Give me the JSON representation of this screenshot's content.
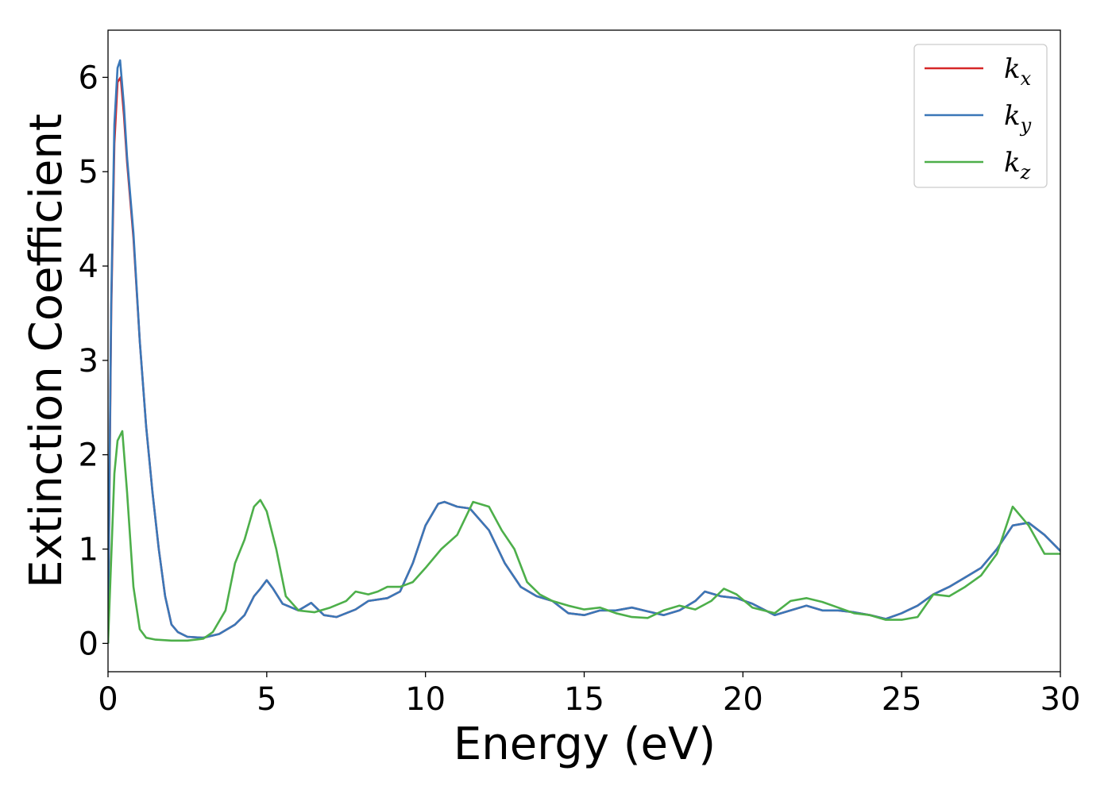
{
  "chart_data": {
    "type": "line",
    "xlabel": "Energy (eV)",
    "ylabel": "Extinction Coefficient",
    "xlim": [
      0,
      30
    ],
    "ylim": [
      -0.3,
      6.5
    ],
    "xticks": [
      "0",
      "5",
      "10",
      "15",
      "20",
      "25",
      "30"
    ],
    "yticks": [
      "0",
      "1",
      "2",
      "3",
      "4",
      "5",
      "6"
    ],
    "grid": false,
    "legend_position": "top-right",
    "series": [
      {
        "name": "k_x",
        "base": "k",
        "sub": "x",
        "color": "#d62728",
        "x": [
          0,
          0.05,
          0.1,
          0.2,
          0.3,
          0.4,
          0.5,
          0.6,
          0.8,
          1.0,
          1.2,
          1.4,
          1.6,
          1.8,
          2.0,
          2.2,
          2.5,
          3.0,
          3.5,
          4.0,
          4.3,
          4.6,
          4.8,
          5.0,
          5.2,
          5.5,
          6.0,
          6.4,
          6.8,
          7.2,
          7.8,
          8.2,
          8.8,
          9.2,
          9.6,
          10.0,
          10.4,
          10.6,
          11.0,
          11.4,
          12.0,
          12.5,
          13.0,
          13.5,
          14.0,
          14.5,
          15.0,
          15.5,
          16.0,
          16.5,
          17.0,
          17.5,
          18.0,
          18.5,
          18.8,
          19.3,
          19.8,
          20.3,
          21.0,
          21.5,
          22.0,
          22.5,
          23.0,
          23.5,
          24.0,
          24.5,
          25.0,
          25.5,
          26.0,
          26.5,
          27.0,
          27.5,
          28.0,
          28.5,
          29.0,
          29.5,
          30.0
        ],
        "y": [
          0.0,
          1.8,
          3.5,
          5.3,
          5.95,
          6.0,
          5.6,
          5.1,
          4.3,
          3.2,
          2.3,
          1.6,
          1.0,
          0.5,
          0.2,
          0.12,
          0.07,
          0.06,
          0.1,
          0.2,
          0.3,
          0.5,
          0.58,
          0.67,
          0.58,
          0.42,
          0.35,
          0.43,
          0.3,
          0.28,
          0.36,
          0.45,
          0.48,
          0.55,
          0.85,
          1.25,
          1.48,
          1.5,
          1.45,
          1.43,
          1.2,
          0.85,
          0.6,
          0.5,
          0.45,
          0.32,
          0.3,
          0.35,
          0.35,
          0.38,
          0.34,
          0.3,
          0.35,
          0.45,
          0.55,
          0.5,
          0.48,
          0.42,
          0.3,
          0.35,
          0.4,
          0.35,
          0.35,
          0.33,
          0.3,
          0.26,
          0.32,
          0.4,
          0.52,
          0.6,
          0.7,
          0.8,
          1.0,
          1.25,
          1.28,
          1.15,
          0.98
        ]
      },
      {
        "name": "k_y",
        "base": "k",
        "sub": "y",
        "color": "#3a77b8",
        "x": [
          0,
          0.05,
          0.1,
          0.2,
          0.3,
          0.38,
          0.5,
          0.6,
          0.8,
          1.0,
          1.2,
          1.4,
          1.6,
          1.8,
          2.0,
          2.2,
          2.5,
          3.0,
          3.5,
          4.0,
          4.3,
          4.6,
          4.8,
          5.0,
          5.2,
          5.5,
          6.0,
          6.4,
          6.8,
          7.2,
          7.8,
          8.2,
          8.8,
          9.2,
          9.6,
          10.0,
          10.4,
          10.6,
          11.0,
          11.4,
          12.0,
          12.5,
          13.0,
          13.5,
          14.0,
          14.5,
          15.0,
          15.5,
          16.0,
          16.5,
          17.0,
          17.5,
          18.0,
          18.5,
          18.8,
          19.3,
          19.8,
          20.3,
          21.0,
          21.5,
          22.0,
          22.5,
          23.0,
          23.5,
          24.0,
          24.5,
          25.0,
          25.5,
          26.0,
          26.5,
          27.0,
          27.5,
          28.0,
          28.5,
          29.0,
          29.5,
          30.0
        ],
        "y": [
          0.0,
          1.9,
          3.6,
          5.5,
          6.1,
          6.18,
          5.7,
          5.15,
          4.35,
          3.2,
          2.3,
          1.6,
          1.0,
          0.5,
          0.2,
          0.12,
          0.07,
          0.06,
          0.1,
          0.2,
          0.3,
          0.5,
          0.58,
          0.67,
          0.58,
          0.42,
          0.35,
          0.43,
          0.3,
          0.28,
          0.36,
          0.45,
          0.48,
          0.55,
          0.85,
          1.25,
          1.48,
          1.5,
          1.45,
          1.43,
          1.2,
          0.85,
          0.6,
          0.5,
          0.45,
          0.32,
          0.3,
          0.35,
          0.35,
          0.38,
          0.34,
          0.3,
          0.35,
          0.45,
          0.55,
          0.5,
          0.48,
          0.42,
          0.3,
          0.35,
          0.4,
          0.35,
          0.35,
          0.33,
          0.3,
          0.26,
          0.32,
          0.4,
          0.52,
          0.6,
          0.7,
          0.8,
          1.0,
          1.25,
          1.28,
          1.15,
          0.98
        ]
      },
      {
        "name": "k_z",
        "base": "k",
        "sub": "z",
        "color": "#4daf4a",
        "x": [
          0,
          0.1,
          0.2,
          0.3,
          0.45,
          0.6,
          0.8,
          1.0,
          1.2,
          1.5,
          2.0,
          2.5,
          3.0,
          3.3,
          3.7,
          4.0,
          4.3,
          4.6,
          4.8,
          5.0,
          5.3,
          5.6,
          6.0,
          6.5,
          7.0,
          7.5,
          7.8,
          8.2,
          8.5,
          8.8,
          9.2,
          9.6,
          10.0,
          10.5,
          11.0,
          11.5,
          12.0,
          12.4,
          12.8,
          13.2,
          13.6,
          14.0,
          14.5,
          15.0,
          15.5,
          16.0,
          16.5,
          17.0,
          17.5,
          18.0,
          18.5,
          19.0,
          19.4,
          19.8,
          20.3,
          21.0,
          21.5,
          22.0,
          22.5,
          23.0,
          23.5,
          24.0,
          24.5,
          25.0,
          25.5,
          26.0,
          26.5,
          27.0,
          27.5,
          28.0,
          28.5,
          29.0,
          29.5,
          30.0
        ],
        "y": [
          0.0,
          0.9,
          1.8,
          2.15,
          2.25,
          1.6,
          0.6,
          0.15,
          0.06,
          0.04,
          0.03,
          0.03,
          0.05,
          0.12,
          0.35,
          0.85,
          1.1,
          1.45,
          1.52,
          1.4,
          1.0,
          0.5,
          0.35,
          0.33,
          0.38,
          0.45,
          0.55,
          0.52,
          0.55,
          0.6,
          0.6,
          0.65,
          0.8,
          1.0,
          1.15,
          1.5,
          1.45,
          1.2,
          1.0,
          0.65,
          0.52,
          0.45,
          0.4,
          0.36,
          0.38,
          0.32,
          0.28,
          0.27,
          0.35,
          0.4,
          0.36,
          0.45,
          0.58,
          0.52,
          0.38,
          0.32,
          0.45,
          0.48,
          0.44,
          0.38,
          0.32,
          0.3,
          0.25,
          0.25,
          0.28,
          0.52,
          0.5,
          0.6,
          0.72,
          0.95,
          1.45,
          1.25,
          0.95,
          0.95
        ]
      }
    ]
  }
}
